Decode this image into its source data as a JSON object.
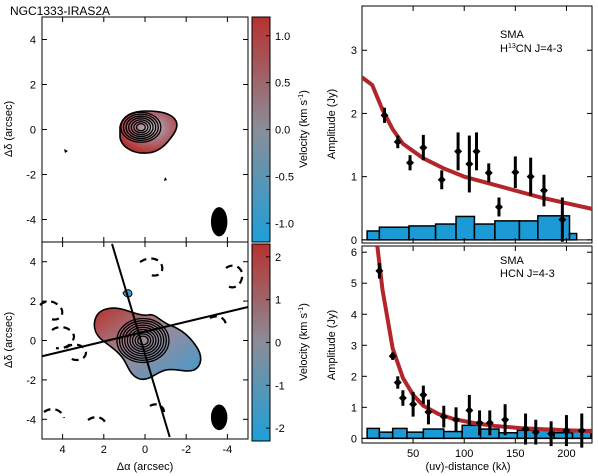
{
  "title": "NGC1333-IRAS2A",
  "left_axes": {
    "xlabel": "Δα (arcsec)",
    "ylabel": "Δδ (arcsec)",
    "xlim": [
      5,
      -5
    ],
    "ylim": [
      -5,
      5
    ],
    "xticks": [
      4,
      2,
      0,
      -2,
      -4
    ],
    "yticks": [
      4,
      2,
      0,
      -2,
      -4
    ],
    "xtick_labels": [
      "4",
      "2",
      "0",
      "-2",
      "-4"
    ],
    "ytick_labels": [
      "4",
      "2",
      "0",
      "-2",
      "-4"
    ]
  },
  "colorbars": [
    {
      "label": "Velocity (km s",
      "label_sup": "-1",
      "label_end": ")",
      "range": [
        -1.2,
        1.2
      ],
      "ticks": [
        1.0,
        0.5,
        0.0,
        -0.5,
        -1.0
      ],
      "tick_labels": [
        "1.0",
        "0.5",
        "0.0",
        "-0.5",
        "-1.0"
      ],
      "colors": {
        "high": "#b8312f",
        "mid": "#8a8d99",
        "low": "#1e9fd8"
      }
    },
    {
      "label": "Velocity (km s",
      "label_sup": "-1",
      "label_end": ")",
      "range": [
        -2.3,
        2.3
      ],
      "ticks": [
        2,
        1,
        0,
        -1,
        -2
      ],
      "tick_labels": [
        "2",
        "1",
        "0",
        "-1",
        "-2"
      ],
      "colors": {
        "high": "#b8312f",
        "mid": "#8a8d99",
        "low": "#1e9fd8"
      }
    }
  ],
  "right_axes": {
    "xlabel": "(uv)-distance (kλ)",
    "ylabel": "Amplitude (Jy)",
    "xlim": [
      0,
      225
    ],
    "xticks": [
      50,
      100,
      150,
      200
    ],
    "xtick_labels": [
      "50",
      "100",
      "150",
      "200"
    ],
    "colors": {
      "model": "#b2262b",
      "histogram": "#1b9ad6"
    }
  },
  "chart_data": [
    {
      "type": "heatmap",
      "panel": "top-left",
      "title": "NGC1333-IRAS2A",
      "description": "velocity map, compact emission",
      "contour_center": [
        0.2,
        0.1
      ],
      "contour_levels": 7,
      "beam": {
        "x": -3.6,
        "y": -4.1,
        "major": 1.3,
        "minor": 0.8
      }
    },
    {
      "type": "heatmap",
      "panel": "bottom-left",
      "description": "velocity map, extended emission",
      "contour_center": [
        0.1,
        0.0
      ],
      "contour_levels": 9,
      "axis_lines": [
        {
          "p1": [
            1.6,
            4.9
          ],
          "p2": [
            -1.2,
            -4.9
          ]
        },
        {
          "p1": [
            5,
            -0.8
          ],
          "p2": [
            -5,
            1.7
          ]
        }
      ],
      "beam": {
        "x": -3.6,
        "y": -3.9,
        "major": 1.3,
        "minor": 0.8
      }
    },
    {
      "type": "scatter",
      "panel": "top-right",
      "label_line1": "SMA",
      "label_line2_pre": "H",
      "label_line2_sup": "13",
      "label_line2_post": "CN J=4-3",
      "ylim": [
        -0.05,
        3.7
      ],
      "yticks": [
        0,
        1,
        2,
        3
      ],
      "ytick_labels": [
        "0",
        "1",
        "2",
        "3"
      ],
      "points": [
        {
          "x": 22,
          "y": 1.97,
          "err": 0.12
        },
        {
          "x": 35,
          "y": 1.55,
          "err": 0.1
        },
        {
          "x": 47,
          "y": 1.22,
          "err": 0.12
        },
        {
          "x": 60,
          "y": 1.46,
          "err": 0.2
        },
        {
          "x": 78,
          "y": 0.95,
          "err": 0.15
        },
        {
          "x": 94,
          "y": 1.4,
          "err": 0.3
        },
        {
          "x": 105,
          "y": 1.2,
          "err": 0.45
        },
        {
          "x": 112,
          "y": 1.4,
          "err": 0.3
        },
        {
          "x": 124,
          "y": 1.06,
          "err": 0.15
        },
        {
          "x": 134,
          "y": 0.52,
          "err": 0.15
        },
        {
          "x": 150,
          "y": 1.07,
          "err": 0.25
        },
        {
          "x": 165,
          "y": 1.0,
          "err": 0.3
        },
        {
          "x": 178,
          "y": 0.78,
          "err": 0.25
        },
        {
          "x": 196,
          "y": 0.32,
          "err": 0.35
        }
      ],
      "model": [
        [
          0,
          2.57
        ],
        [
          10,
          2.45
        ],
        [
          20,
          2.06
        ],
        [
          30,
          1.75
        ],
        [
          40,
          1.52
        ],
        [
          60,
          1.29
        ],
        [
          80,
          1.13
        ],
        [
          100,
          1.0
        ],
        [
          125,
          0.89
        ],
        [
          150,
          0.78
        ],
        [
          175,
          0.67
        ],
        [
          200,
          0.58
        ],
        [
          225,
          0.49
        ]
      ],
      "histogram": [
        {
          "x0": 5,
          "x1": 17,
          "y": 0.14
        },
        {
          "x0": 17,
          "x1": 46,
          "y": 0.2
        },
        {
          "x0": 46,
          "x1": 72,
          "y": 0.22
        },
        {
          "x0": 72,
          "x1": 92,
          "y": 0.25
        },
        {
          "x0": 92,
          "x1": 110,
          "y": 0.37
        },
        {
          "x0": 110,
          "x1": 130,
          "y": 0.25
        },
        {
          "x0": 130,
          "x1": 154,
          "y": 0.3
        },
        {
          "x0": 154,
          "x1": 172,
          "y": 0.3
        },
        {
          "x0": 172,
          "x1": 203,
          "y": 0.38
        },
        {
          "x0": 203,
          "x1": 210,
          "y": 0.1
        }
      ]
    },
    {
      "type": "scatter",
      "panel": "bottom-right",
      "label_line1": "SMA",
      "label_line2_pre": "HCN J=4-3",
      "label_line2_sup": "",
      "label_line2_post": "",
      "ylim": [
        -0.15,
        6.2
      ],
      "yticks": [
        0,
        1,
        2,
        3,
        4,
        5,
        6
      ],
      "ytick_labels": [
        "0",
        "1",
        "2",
        "3",
        "4",
        "5",
        "6"
      ],
      "points": [
        {
          "x": 17,
          "y": 5.4,
          "err": 0.25
        },
        {
          "x": 30,
          "y": 2.65,
          "err": 0.12
        },
        {
          "x": 35,
          "y": 1.8,
          "err": 0.2
        },
        {
          "x": 40,
          "y": 1.3,
          "err": 0.25
        },
        {
          "x": 50,
          "y": 1.1,
          "err": 0.4
        },
        {
          "x": 60,
          "y": 1.4,
          "err": 0.3
        },
        {
          "x": 65,
          "y": 0.85,
          "err": 0.4
        },
        {
          "x": 80,
          "y": 0.7,
          "err": 0.35
        },
        {
          "x": 92,
          "y": 0.6,
          "err": 0.4
        },
        {
          "x": 105,
          "y": 0.9,
          "err": 0.5
        },
        {
          "x": 115,
          "y": 0.5,
          "err": 0.4
        },
        {
          "x": 125,
          "y": 0.5,
          "err": 0.4
        },
        {
          "x": 140,
          "y": 0.6,
          "err": 0.5
        },
        {
          "x": 160,
          "y": 0.3,
          "err": 0.5
        },
        {
          "x": 170,
          "y": 0.2,
          "err": 0.4
        },
        {
          "x": 185,
          "y": 0.15,
          "err": 0.4
        },
        {
          "x": 200,
          "y": 0.25,
          "err": 0.5
        },
        {
          "x": 215,
          "y": 0.25,
          "err": 0.55
        }
      ],
      "model": [
        [
          15,
          6.2
        ],
        [
          20,
          4.8
        ],
        [
          30,
          2.9
        ],
        [
          40,
          1.95
        ],
        [
          50,
          1.4
        ],
        [
          60,
          1.05
        ],
        [
          75,
          0.78
        ],
        [
          90,
          0.62
        ],
        [
          110,
          0.49
        ],
        [
          130,
          0.4
        ],
        [
          155,
          0.33
        ],
        [
          180,
          0.29
        ],
        [
          200,
          0.26
        ],
        [
          225,
          0.23
        ]
      ],
      "histogram": [
        {
          "x0": 5,
          "x1": 17,
          "y": 0.32
        },
        {
          "x0": 17,
          "x1": 30,
          "y": 0.2
        },
        {
          "x0": 30,
          "x1": 44,
          "y": 0.32
        },
        {
          "x0": 44,
          "x1": 60,
          "y": 0.2
        },
        {
          "x0": 60,
          "x1": 80,
          "y": 0.3
        },
        {
          "x0": 80,
          "x1": 98,
          "y": 0.22
        },
        {
          "x0": 98,
          "x1": 116,
          "y": 0.42
        },
        {
          "x0": 116,
          "x1": 134,
          "y": 0.3
        },
        {
          "x0": 134,
          "x1": 152,
          "y": 0.18
        },
        {
          "x0": 152,
          "x1": 170,
          "y": 0.26
        },
        {
          "x0": 170,
          "x1": 188,
          "y": 0.32
        },
        {
          "x0": 188,
          "x1": 206,
          "y": 0.18
        },
        {
          "x0": 206,
          "x1": 224,
          "y": 0.28
        }
      ]
    }
  ]
}
